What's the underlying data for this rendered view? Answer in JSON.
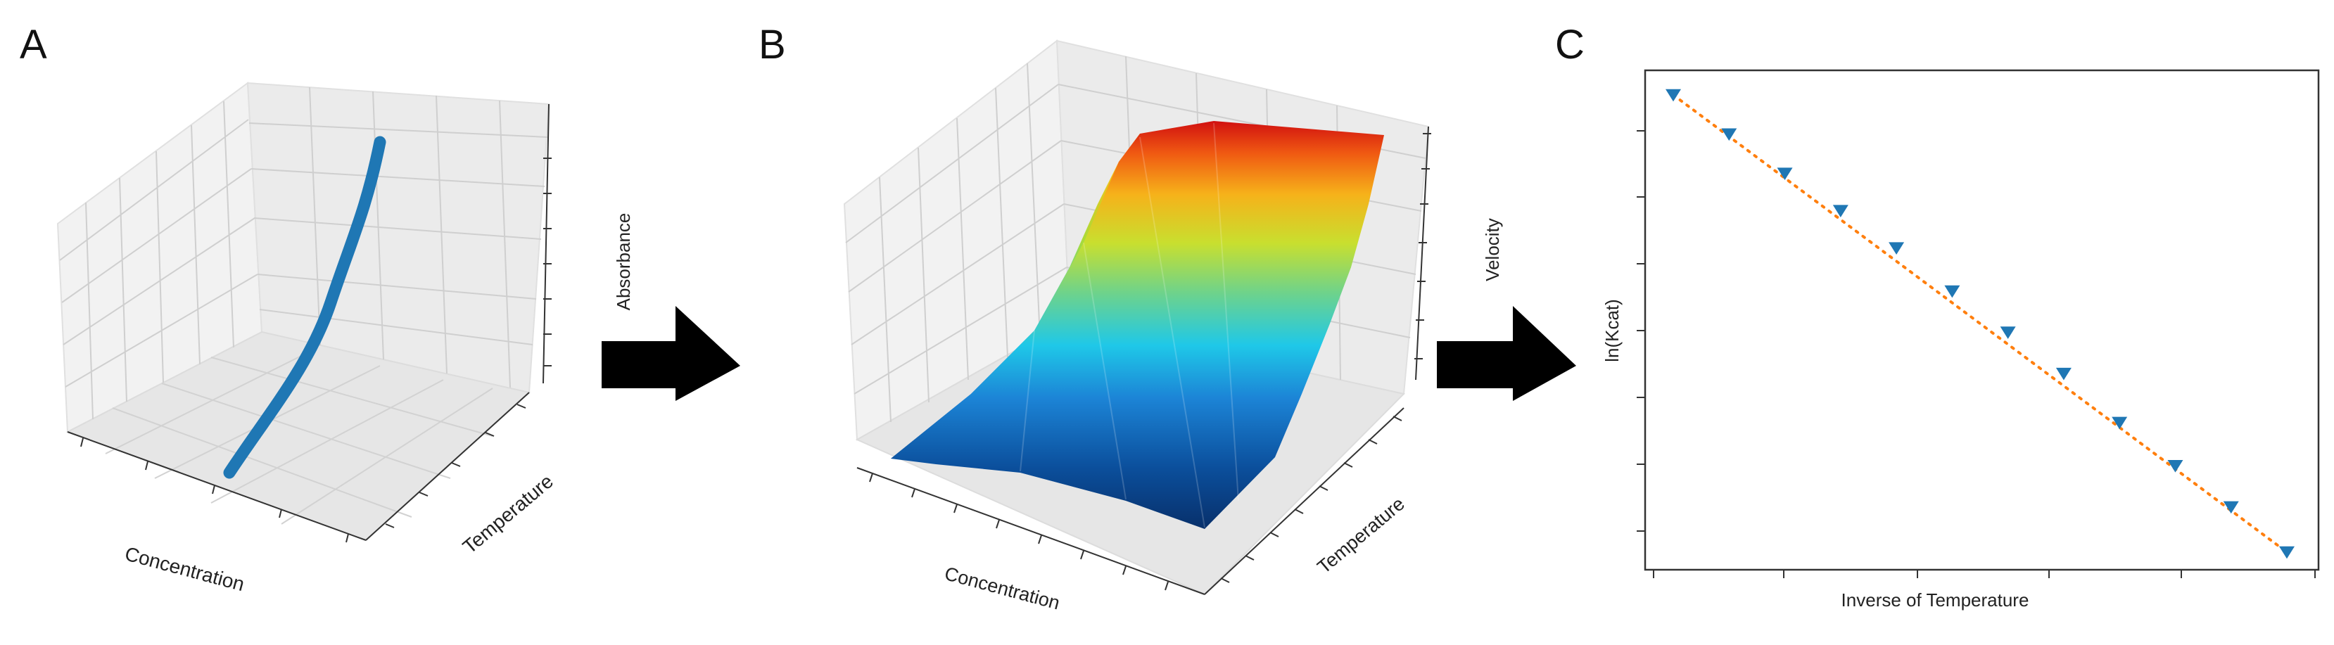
{
  "figure": {
    "panel_a": {
      "letter": "A",
      "xlabel": "Concentration",
      "ylabel": "Temperature",
      "zlabel": "Absorbance"
    },
    "panel_b": {
      "letter": "B",
      "xlabel": "Concentration",
      "ylabel": "Temperature",
      "zlabel": "Velocity"
    },
    "panel_c": {
      "letter": "C",
      "xlabel": "Inverse of Temperature",
      "ylabel": "ln(Kcat)"
    },
    "colors": {
      "curve": "#1f77b4",
      "fit_line": "#ff7f0e",
      "arrow": "#000000",
      "pane": "#f2f2f2",
      "grid": "#d0d0d0"
    }
  },
  "chart_data": [
    {
      "type": "scatter",
      "panel": "A",
      "series": [
        {
          "x": [
            1,
            2,
            3,
            4,
            5,
            6,
            7,
            8,
            9,
            10
          ],
          "y": [
            1,
            2,
            3,
            4,
            5,
            6,
            7,
            8,
            9,
            10
          ],
          "z": [
            1,
            2.1,
            3.3,
            4.4,
            5.6,
            6.8,
            8.0,
            9.2,
            10.4,
            11.6
          ]
        }
      ],
      "xlabel": "Concentration",
      "ylabel": "Temperature",
      "zlabel": "Absorbance"
    },
    {
      "type": "surface",
      "panel": "B",
      "xlabel": "Concentration",
      "ylabel": "Temperature",
      "zlabel": "Velocity",
      "colormap": "jet"
    },
    {
      "type": "scatter",
      "panel": "C",
      "xlabel": "Inverse of Temperature",
      "ylabel": "ln(Kcat)",
      "x": [
        1,
        2,
        3,
        4,
        5,
        6,
        7,
        8,
        9,
        10,
        11,
        12
      ],
      "y": [
        11.35,
        10.35,
        9.35,
        8.4,
        7.45,
        6.35,
        5.3,
        4.25,
        3.0,
        1.9,
        0.85,
        -0.3
      ],
      "series": [
        {
          "name": "",
          "marker": "triangle-down",
          "values": [
            11.35,
            10.35,
            9.35,
            8.4,
            7.45,
            6.35,
            5.3,
            4.25,
            3.0,
            1.9,
            0.85,
            -0.3
          ]
        }
      ],
      "fit_line": {
        "style": "dotted"
      },
      "grid": false
    }
  ]
}
